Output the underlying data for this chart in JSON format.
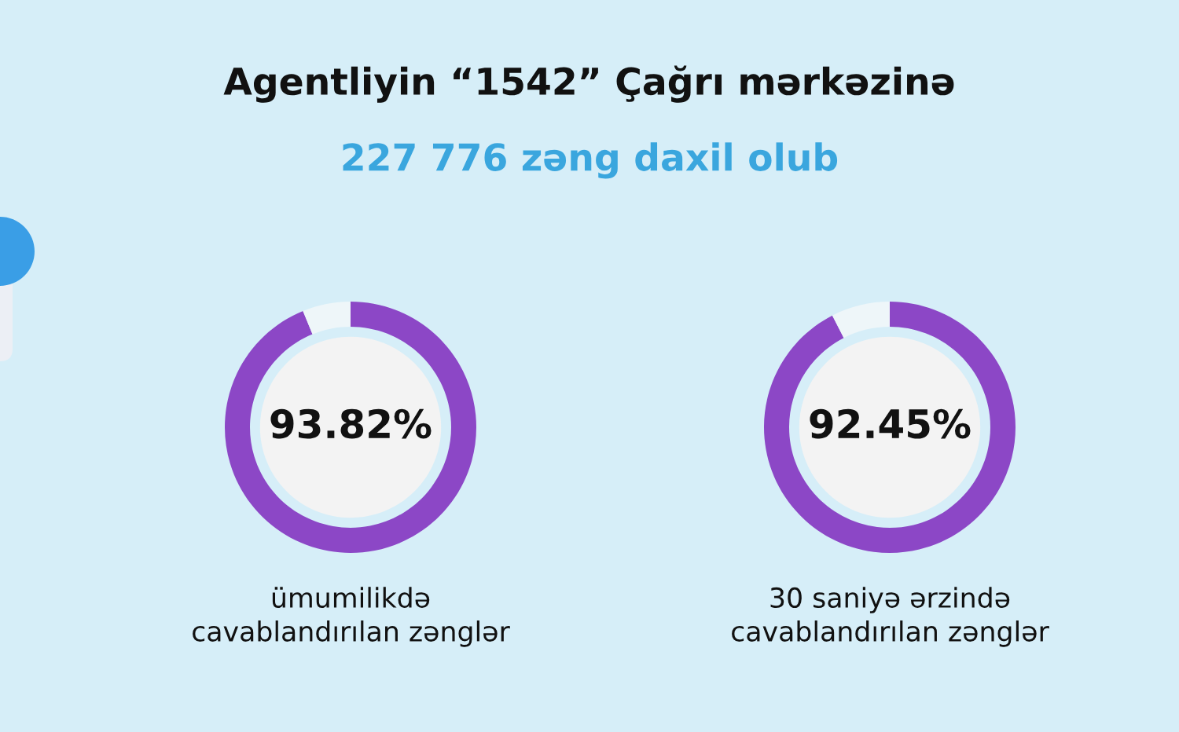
{
  "chart_data": [
    {
      "type": "other",
      "title": "Agentliyin “1542” Çağrı mərkəzinə",
      "subtitle": "227 776 zəng daxil olub"
    },
    {
      "type": "donut",
      "title": "ümumilikdə\ncavablandırılan zənglər",
      "categories": [
        null,
        null
      ],
      "values": [
        93.82,
        6.18
      ],
      "colors": [
        "#8c47c6",
        "#eef6f9"
      ],
      "value_labels": [
        "93.82%",
        null
      ]
    },
    {
      "type": "donut",
      "title": "30 saniyə ərzində\ncavablandırılan zənglər",
      "categories": [
        null,
        null
      ],
      "values": [
        92.45,
        7.55
      ],
      "colors": [
        "#8c47c6",
        "#eef6f9"
      ],
      "value_labels": [
        "92.45%",
        null
      ]
    }
  ]
}
